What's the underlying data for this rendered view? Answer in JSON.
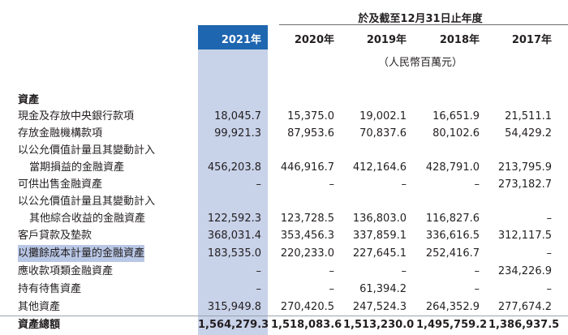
{
  "caption": "於及截至12月31日止年度",
  "unit": "（人民幣百萬元）",
  "years": [
    "2021年",
    "2020年",
    "2019年",
    "2018年",
    "2017年"
  ],
  "section": "資產",
  "rows": [
    {
      "label": "現金及存放中央銀行款項",
      "values": [
        "18,045.7",
        "15,375.0",
        "19,002.1",
        "16,651.9",
        "21,511.1"
      ]
    },
    {
      "label": "存放金融機構款項",
      "values": [
        "99,921.3",
        "87,953.6",
        "70,837.6",
        "80,102.6",
        "54,429.2"
      ]
    },
    {
      "label": "以公允價值計量且其變動計入",
      "values": [
        "",
        "",
        "",
        "",
        ""
      ]
    },
    {
      "label": "當期損益的金融資產",
      "values": [
        "456,203.8",
        "446,916.7",
        "412,164.6",
        "428,791.0",
        "213,795.9"
      ]
    },
    {
      "label": "可供出售金融資產",
      "values": [
        "–",
        "–",
        "–",
        "–",
        "273,182.7"
      ]
    },
    {
      "label": "以公允價值計量且其變動計入",
      "values": [
        "",
        "",
        "",
        "",
        ""
      ]
    },
    {
      "label": "其他綜合收益的金融資產",
      "values": [
        "122,592.3",
        "123,728.5",
        "136,803.0",
        "116,827.6",
        "–"
      ]
    },
    {
      "label": "客戶貸款及墊款",
      "values": [
        "368,031.4",
        "353,456.3",
        "337,859.1",
        "336,616.5",
        "312,117.5"
      ]
    },
    {
      "label": "以攤餘成本計量的金融資產",
      "values": [
        "183,535.0",
        "220,233.0",
        "227,645.1",
        "252,416.7",
        "–"
      ]
    },
    {
      "label": "應收款項類金融資產",
      "values": [
        "–",
        "–",
        "–",
        "–",
        "234,226.9"
      ]
    },
    {
      "label": "持有待售資產",
      "values": [
        "–",
        "–",
        "61,394.2",
        "–",
        "–"
      ]
    },
    {
      "label": "其他資產",
      "values": [
        "315,949.8",
        "270,420.5",
        "247,524.3",
        "264,352.9",
        "277,674.2"
      ]
    },
    {
      "label": "資產總額",
      "values": [
        "1,564,279.3",
        "1,518,083.6",
        "1,513,230.0",
        "1,495,759.2",
        "1,386,937.5"
      ]
    }
  ]
}
